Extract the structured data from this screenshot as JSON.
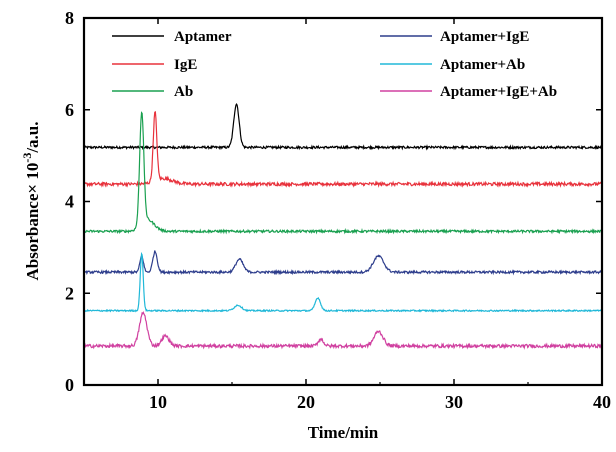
{
  "chart_data": {
    "type": "line",
    "xlabel": "Time/min",
    "ylabel_main": "Absorbance× 10",
    "ylabel_exp": "-3",
    "ylabel_unit": "/a.u.",
    "xlim": [
      5,
      40
    ],
    "ylim": [
      0,
      8
    ],
    "xticks": [
      10,
      20,
      30,
      40
    ],
    "yticks": [
      0,
      2,
      4,
      6,
      8
    ],
    "grid": false,
    "legend": "top",
    "series": [
      {
        "name": "Aptamer",
        "color": "#000000",
        "baseline": 5.18,
        "noise": 0.025,
        "peaks": [
          {
            "x": 15.3,
            "height": 0.95,
            "width": 0.18
          }
        ]
      },
      {
        "name": "IgE",
        "color": "#e8323c",
        "baseline": 4.38,
        "noise": 0.035,
        "peaks": [
          {
            "x": 9.8,
            "height": 1.5,
            "width": 0.12
          },
          {
            "x": 10.4,
            "height": 0.12,
            "width": 0.6
          }
        ]
      },
      {
        "name": "Ab",
        "color": "#1aa050",
        "baseline": 3.35,
        "noise": 0.025,
        "peaks": [
          {
            "x": 8.9,
            "height": 2.45,
            "width": 0.14
          },
          {
            "x": 9.3,
            "height": 0.25,
            "width": 0.45
          }
        ]
      },
      {
        "name": "Aptamer+IgE",
        "color": "#2d3d8c",
        "baseline": 2.46,
        "noise": 0.025,
        "peaks": [
          {
            "x": 8.9,
            "height": 0.35,
            "width": 0.12
          },
          {
            "x": 9.8,
            "height": 0.45,
            "width": 0.15
          },
          {
            "x": 15.5,
            "height": 0.28,
            "width": 0.25
          },
          {
            "x": 24.9,
            "height": 0.35,
            "width": 0.35
          }
        ]
      },
      {
        "name": "Aptamer+Ab",
        "color": "#20b8d8",
        "baseline": 1.62,
        "noise": 0.015,
        "peaks": [
          {
            "x": 8.9,
            "height": 1.25,
            "width": 0.1
          },
          {
            "x": 15.4,
            "height": 0.12,
            "width": 0.25
          },
          {
            "x": 20.8,
            "height": 0.28,
            "width": 0.18
          }
        ]
      },
      {
        "name": "Aptamer+IgE+Ab",
        "color": "#d040a0",
        "baseline": 0.85,
        "noise": 0.035,
        "peaks": [
          {
            "x": 9.0,
            "height": 0.72,
            "width": 0.25
          },
          {
            "x": 10.5,
            "height": 0.22,
            "width": 0.25
          },
          {
            "x": 21.0,
            "height": 0.15,
            "width": 0.18
          },
          {
            "x": 24.9,
            "height": 0.32,
            "width": 0.3
          }
        ]
      }
    ]
  }
}
